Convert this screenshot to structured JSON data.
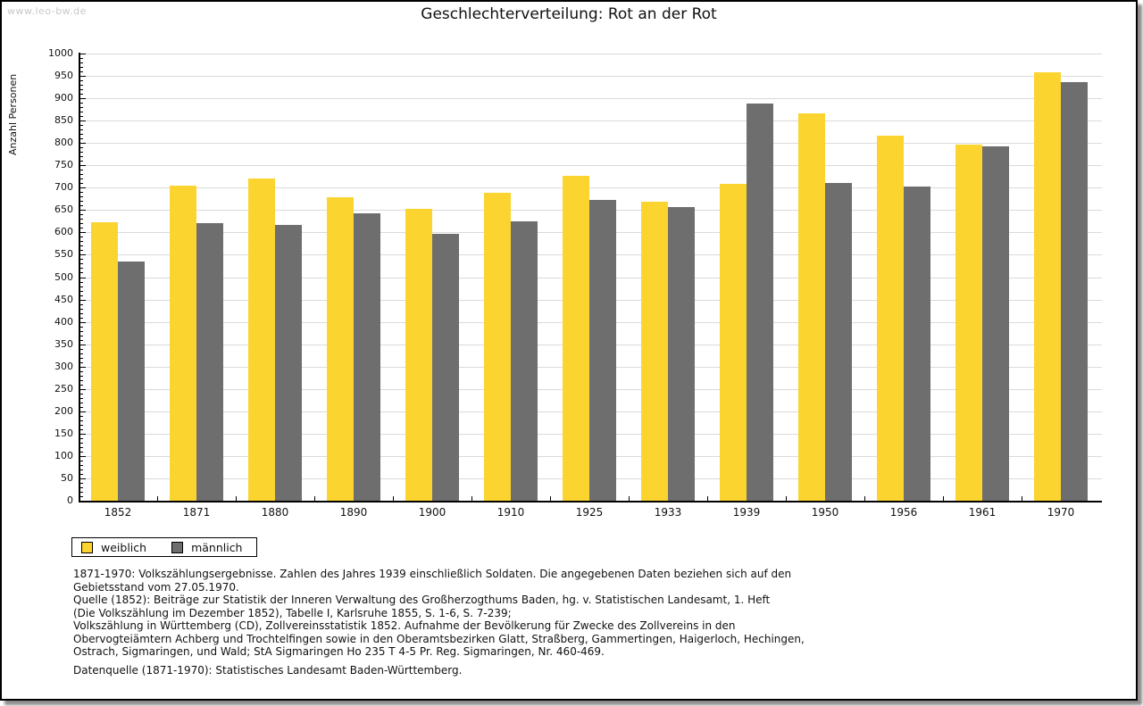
{
  "watermark": "www.leo-bw.de",
  "chart_data": {
    "type": "bar",
    "title": "Geschlechterverteilung: Rot an der Rot",
    "ylabel": "Anzahl Personen",
    "xlabel": "",
    "categories": [
      "1852",
      "1871",
      "1880",
      "1890",
      "1900",
      "1910",
      "1925",
      "1933",
      "1939",
      "1950",
      "1956",
      "1961",
      "1970"
    ],
    "series": [
      {
        "name": "weiblich",
        "color": "#FCD42F",
        "values": [
          622,
          705,
          721,
          679,
          652,
          689,
          726,
          668,
          709,
          866,
          817,
          797,
          958
        ]
      },
      {
        "name": "männlich",
        "color": "#6E6E6E",
        "values": [
          534,
          620,
          617,
          643,
          596,
          625,
          673,
          657,
          889,
          710,
          703,
          792,
          936
        ]
      }
    ],
    "ylim": [
      0,
      1000
    ],
    "ytick_step": 50,
    "yminor_step": 10,
    "grid": true,
    "legend_position": "bottom-left"
  },
  "legend": {
    "items": [
      {
        "label": "weiblich",
        "color": "#FCD42F"
      },
      {
        "label": "männlich",
        "color": "#6E6E6E"
      }
    ]
  },
  "footer": {
    "lines": [
      "1871-1970: Volkszählungsergebnisse. Zahlen des Jahres 1939 einschließlich Soldaten. Die angegebenen Daten beziehen sich auf den",
      "Gebietsstand vom 27.05.1970.",
      "Quelle (1852): Beiträge zur Statistik der Inneren Verwaltung des Großherzogthums Baden, hg. v. Statistischen Landesamt, 1. Heft",
      "(Die Volkszählung im Dezember 1852), Tabelle I, Karlsruhe 1855, S. 1-6, S. 7-239;",
      "Volkszählung in Württemberg (CD), Zollvereinsstatistik 1852. Aufnahme der Bevölkerung für Zwecke des Zollvereins in den",
      "Obervogteiämtern Achberg und Trochtelfingen sowie in den Oberamtsbezirken Glatt, Straßberg, Gammertingen, Haigerloch, Hechingen,",
      "Ostrach, Sigmaringen, und Wald; StA Sigmaringen Ho 235 T 4-5 Pr. Reg. Sigmaringen, Nr. 460-469."
    ],
    "datenquelle": "Datenquelle (1871-1970): Statistisches Landesamt Baden-Württemberg."
  },
  "colors": {
    "female_bar": "#FCD42F",
    "male_bar": "#6E6E6E",
    "gridline": "#DADADA",
    "watermark": "#C9C9C9",
    "axis": "#000000"
  }
}
